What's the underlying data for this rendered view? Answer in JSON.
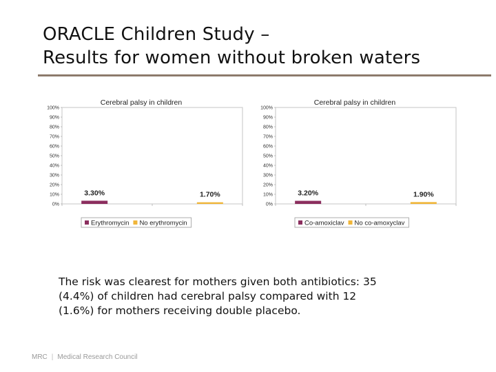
{
  "slide": {
    "title_line1": "ORACLE Children Study –",
    "title_line2": "Results for women without broken waters",
    "body_line1": "The risk was clearest for mothers given both antibiotics: 35",
    "body_line2": "(4.4%) of children had cerebral palsy compared with 12",
    "body_line3": "(1.6%) for mothers receiving double placebo.",
    "footer_abbr": "MRC",
    "footer_name": "Medical Research Council"
  },
  "colors": {
    "series_a": "#8b2e5e",
    "series_b": "#f0b63a",
    "rule": "#8c7a6b"
  },
  "chart_data": [
    {
      "type": "bar",
      "title": "Cerebral palsy in children",
      "ylim": [
        0,
        100
      ],
      "yticks": [
        "0%",
        "10%",
        "20%",
        "30%",
        "40%",
        "50%",
        "60%",
        "70%",
        "80%",
        "90%",
        "100%"
      ],
      "grid": false,
      "legend_position": "bottom",
      "series": [
        {
          "name": "Erythromycin",
          "value": 3.3,
          "label": "3.30%",
          "color": "#8b2e5e"
        },
        {
          "name": "No erythromycin",
          "value": 1.7,
          "label": "1.70%",
          "color": "#f0b63a"
        }
      ]
    },
    {
      "type": "bar",
      "title": "Cerebral palsy in children",
      "ylim": [
        0,
        100
      ],
      "yticks": [
        "0%",
        "10%",
        "20%",
        "30%",
        "40%",
        "50%",
        "60%",
        "70%",
        "80%",
        "90%",
        "100%"
      ],
      "grid": false,
      "legend_position": "bottom",
      "series": [
        {
          "name": "Co-amoxiclav",
          "value": 3.2,
          "label": "3.20%",
          "color": "#8b2e5e"
        },
        {
          "name": "No co-amoxyclav",
          "value": 1.9,
          "label": "1.90%",
          "color": "#f0b63a"
        }
      ]
    }
  ]
}
